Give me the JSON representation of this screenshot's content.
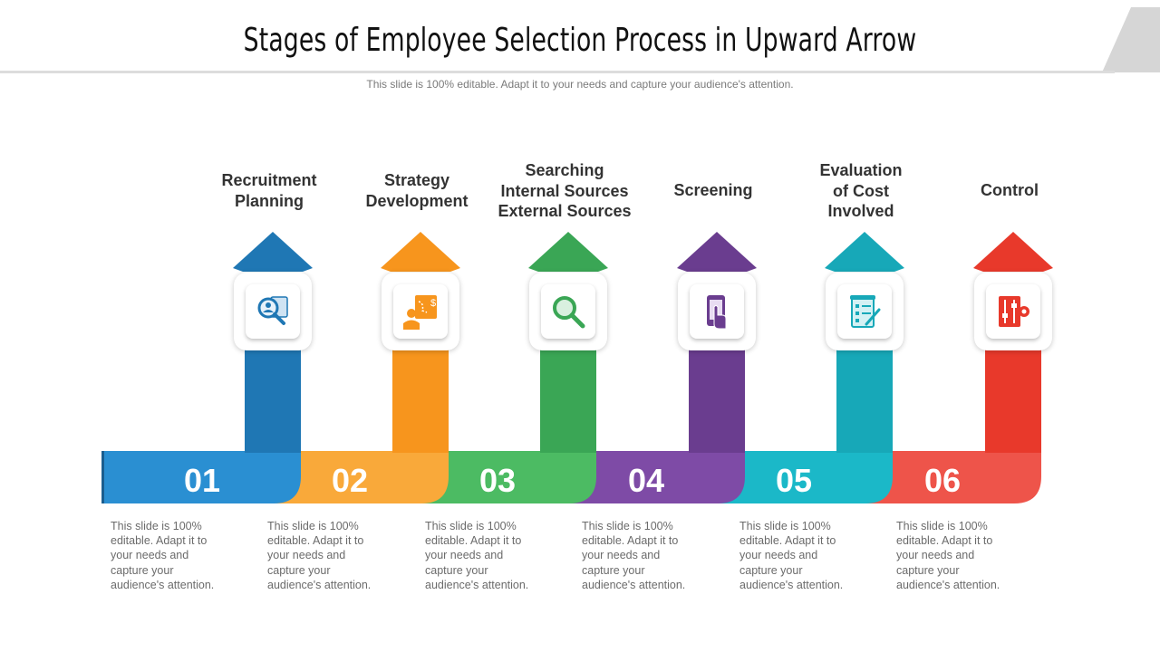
{
  "title": "Stages of Employee Selection Process in Upward Arrow",
  "subtitle": "This slide is 100% editable. Adapt it to your needs and capture your audience's attention.",
  "stages": [
    {
      "number": "01",
      "label": "Recruitment\nPlanning",
      "color": "#1F77B4",
      "light": "#2A8FD2",
      "icon": "search-profile-icon",
      "description": "This slide is 100% editable. Adapt it to your needs and capture your audience's attention."
    },
    {
      "number": "02",
      "label": "Strategy\nDevelopment",
      "color": "#F7951D",
      "light": "#F9A93A",
      "icon": "strategy-plan-icon",
      "description": "This slide is 100% editable. Adapt it to your needs and capture your audience's attention."
    },
    {
      "number": "03",
      "label": "Searching\nInternal Sources\nExternal Sources",
      "color": "#3AA655",
      "light": "#4CBB63",
      "icon": "magnifier-icon",
      "description": "This slide is 100% editable. Adapt it to your needs and capture your audience's attention."
    },
    {
      "number": "04",
      "label": "Screening",
      "color": "#6A3D8F",
      "light": "#7E4BA6",
      "icon": "touch-screen-icon",
      "description": "This slide is 100% editable. Adapt it to your needs and capture your audience's attention."
    },
    {
      "number": "05",
      "label": "Evaluation\nof Cost\nInvolved",
      "color": "#17A8B8",
      "light": "#1BB8C8",
      "icon": "checklist-icon",
      "description": "This slide is 100% editable. Adapt it to your needs and capture your audience's attention."
    },
    {
      "number": "06",
      "label": "Control",
      "color": "#E8392B",
      "light": "#EE544A",
      "icon": "control-panel-icon",
      "description": "This slide is 100% editable. Adapt it to your needs and capture your audience's attention."
    }
  ]
}
